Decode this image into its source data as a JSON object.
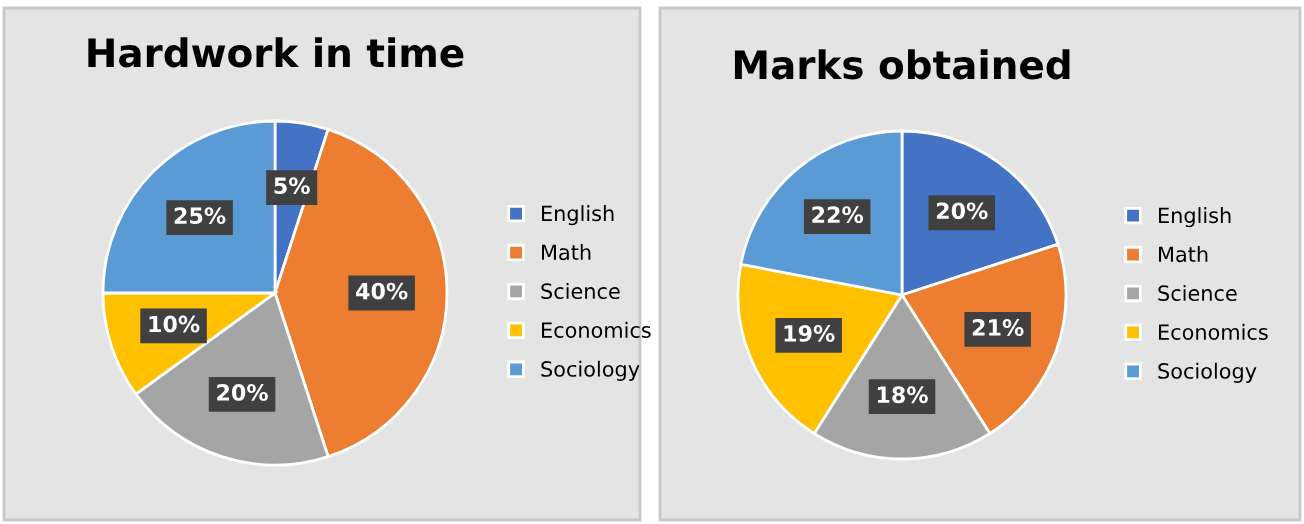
{
  "chart_data": [
    {
      "type": "pie",
      "title": "Hardwork in time",
      "categories": [
        "English",
        "Math",
        "Science",
        "Economics",
        "Sociology"
      ],
      "values": [
        5,
        40,
        20,
        10,
        25
      ],
      "value_labels": [
        "5%",
        "40%",
        "20%",
        "10%",
        "25%"
      ],
      "colors": [
        "#4472c4",
        "#ed7d31",
        "#a5a5a5",
        "#ffc000",
        "#5b9bd5"
      ],
      "legend": "right"
    },
    {
      "type": "pie",
      "title": "Marks obtained",
      "categories": [
        "English",
        "Math",
        "Science",
        "Economics",
        "Sociology"
      ],
      "values": [
        20,
        21,
        18,
        19,
        22
      ],
      "value_labels": [
        "20%",
        "21%",
        "18%",
        "19%",
        "22%"
      ],
      "colors": [
        "#4472c4",
        "#ed7d31",
        "#a5a5a5",
        "#ffc000",
        "#5b9bd5"
      ],
      "legend": "right"
    }
  ]
}
